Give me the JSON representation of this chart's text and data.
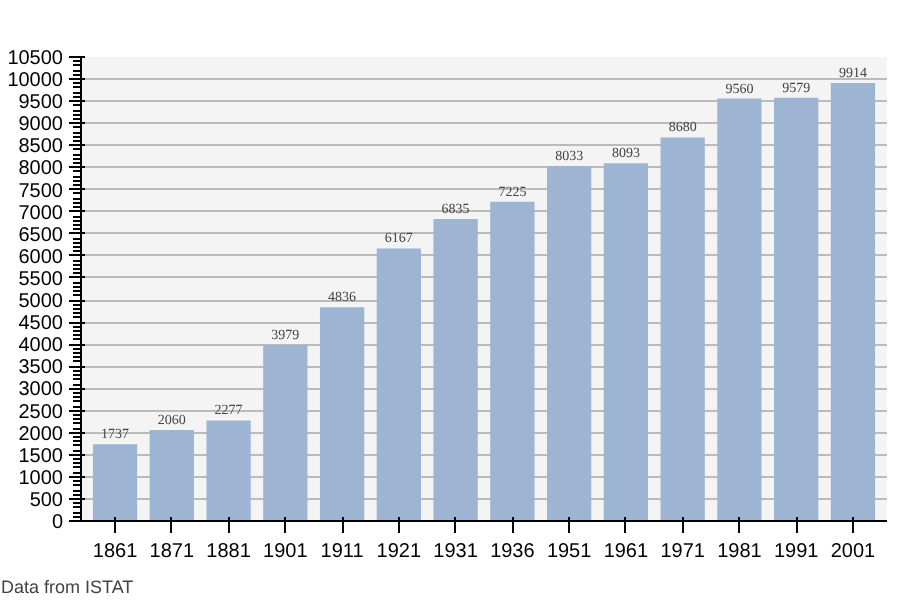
{
  "chart_data": {
    "type": "bar",
    "categories": [
      "1861",
      "1871",
      "1881",
      "1901",
      "1911",
      "1921",
      "1931",
      "1936",
      "1951",
      "1961",
      "1971",
      "1981",
      "1991",
      "2001"
    ],
    "values": [
      1737,
      2060,
      2277,
      3979,
      4836,
      6167,
      6835,
      7225,
      8033,
      8093,
      8680,
      9560,
      9579,
      9914
    ],
    "color": "#9db4d2",
    "data_labels": true,
    "grid": "y",
    "ylim": [
      0,
      10500
    ],
    "yticks": [
      0,
      500,
      1000,
      1500,
      2000,
      2500,
      3000,
      3500,
      4000,
      4500,
      5000,
      5500,
      6000,
      6500,
      7000,
      7500,
      8000,
      8500,
      9000,
      9500,
      10000,
      10500
    ],
    "annotations": [
      "Data from ISTAT"
    ]
  }
}
